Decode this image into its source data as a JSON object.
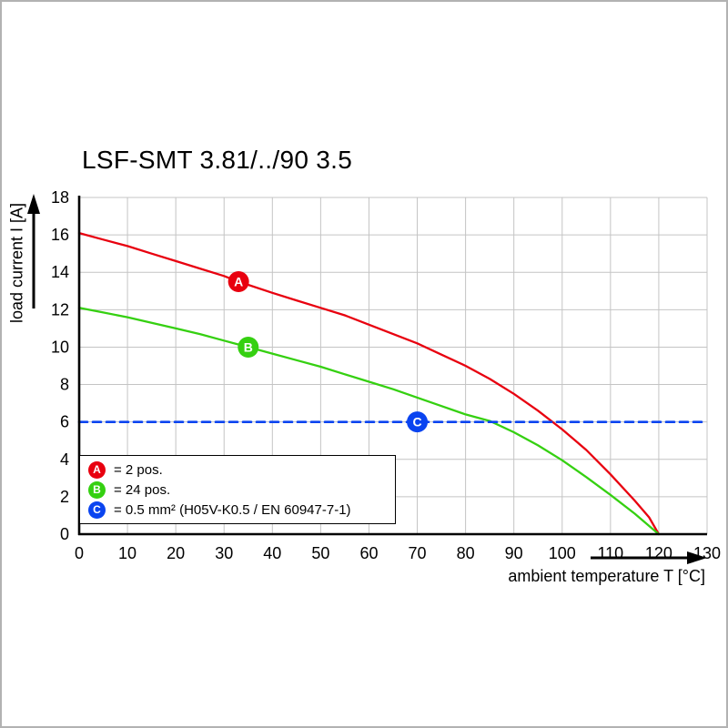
{
  "chart_data": {
    "type": "line",
    "title": "LSF-SMT 3.81/../90 3.5",
    "xlabel": "ambient temperature T [°C]",
    "ylabel": "load current I [A]",
    "xlim": [
      0,
      130
    ],
    "ylim": [
      0,
      18
    ],
    "xticks": [
      0,
      10,
      20,
      30,
      40,
      50,
      60,
      70,
      80,
      90,
      100,
      110,
      120,
      130
    ],
    "yticks": [
      0,
      2,
      4,
      6,
      8,
      10,
      12,
      14,
      16,
      18
    ],
    "grid": true,
    "grid_color": "#c4c4c4",
    "legend_position": "lower left",
    "series": [
      {
        "name": "A",
        "label": "= 2 pos.",
        "color": "#e8000f",
        "style": "solid",
        "points": [
          [
            0,
            16.1
          ],
          [
            5,
            15.75
          ],
          [
            10,
            15.4
          ],
          [
            15,
            15.0
          ],
          [
            20,
            14.6
          ],
          [
            25,
            14.2
          ],
          [
            30,
            13.8
          ],
          [
            33,
            13.5
          ],
          [
            40,
            12.9
          ],
          [
            45,
            12.5
          ],
          [
            50,
            12.1
          ],
          [
            55,
            11.7
          ],
          [
            60,
            11.2
          ],
          [
            65,
            10.7
          ],
          [
            70,
            10.2
          ],
          [
            75,
            9.6
          ],
          [
            80,
            9.0
          ],
          [
            85,
            8.3
          ],
          [
            90,
            7.5
          ],
          [
            95,
            6.6
          ],
          [
            100,
            5.6
          ],
          [
            105,
            4.5
          ],
          [
            110,
            3.2
          ],
          [
            115,
            1.8
          ],
          [
            118,
            0.9
          ],
          [
            120,
            0
          ]
        ]
      },
      {
        "name": "B",
        "label": "= 24 pos.",
        "color": "#35d011",
        "style": "solid",
        "points": [
          [
            0,
            12.1
          ],
          [
            5,
            11.85
          ],
          [
            10,
            11.6
          ],
          [
            15,
            11.3
          ],
          [
            20,
            11.0
          ],
          [
            25,
            10.7
          ],
          [
            30,
            10.35
          ],
          [
            35,
            10.0
          ],
          [
            40,
            9.65
          ],
          [
            45,
            9.3
          ],
          [
            50,
            8.95
          ],
          [
            55,
            8.55
          ],
          [
            60,
            8.15
          ],
          [
            65,
            7.75
          ],
          [
            70,
            7.3
          ],
          [
            75,
            6.85
          ],
          [
            80,
            6.4
          ],
          [
            85,
            6.05
          ],
          [
            90,
            5.45
          ],
          [
            95,
            4.75
          ],
          [
            100,
            3.95
          ],
          [
            105,
            3.05
          ],
          [
            110,
            2.1
          ],
          [
            115,
            1.1
          ],
          [
            120,
            0
          ]
        ]
      },
      {
        "name": "C",
        "label": "= 0.5 mm² (H05V-K0.5 / EN 60947-7-1)",
        "color": "#0a44f0",
        "style": "dashed",
        "points": [
          [
            0,
            6
          ],
          [
            130,
            6
          ]
        ]
      }
    ],
    "markers": [
      {
        "key": "A",
        "x": 33,
        "y": 13.5,
        "color": "#e8000f"
      },
      {
        "key": "B",
        "x": 35,
        "y": 10.0,
        "color": "#35d011"
      },
      {
        "key": "C",
        "x": 70,
        "y": 6.0,
        "color": "#0a44f0"
      }
    ],
    "legend": [
      {
        "key": "A",
        "color": "#e8000f",
        "label": "= 2 pos."
      },
      {
        "key": "B",
        "color": "#35d011",
        "label": "= 24 pos."
      },
      {
        "key": "C",
        "color": "#0a44f0",
        "label": "= 0.5 mm² (H05V-K0.5 / EN 60947-7-1)"
      }
    ]
  }
}
